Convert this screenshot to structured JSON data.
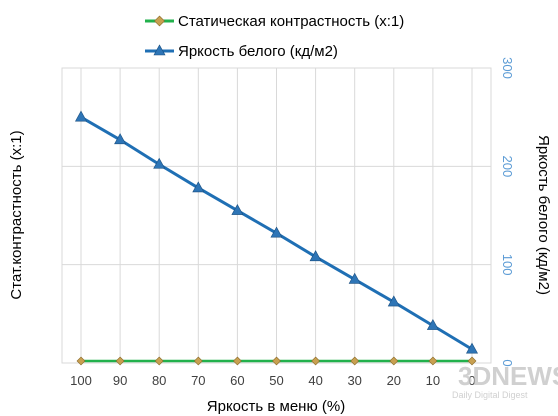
{
  "chart_data": {
    "type": "line",
    "x": [
      100,
      90,
      80,
      70,
      60,
      50,
      40,
      30,
      20,
      10,
      0
    ],
    "xlabel": "Яркость в меню (%)",
    "ylabel_left": "Стат.контрастность  (x:1)",
    "ylabel_right": "Яркость белого (кд/м2)",
    "y_right_ticks": [
      "300",
      "200",
      "100",
      "0"
    ],
    "ylim_right": [
      0,
      300
    ],
    "grid": true,
    "legend_position": "top",
    "series": [
      {
        "name": "Статическая контрастность (x:1)",
        "axis": "left",
        "color": "#22b14c",
        "marker": "diamond",
        "marker_color": "#c8a050",
        "values": [
          0,
          0,
          0,
          0,
          0,
          0,
          0,
          0,
          0,
          0,
          0
        ]
      },
      {
        "name": "Яркость белого (кд/м2)",
        "axis": "right",
        "color": "#1f6fb4",
        "marker": "triangle",
        "marker_color": "#2e75b6",
        "values": [
          250,
          227,
          202,
          178,
          155,
          132,
          108,
          85,
          62,
          38,
          14
        ]
      }
    ]
  },
  "watermark": {
    "logo": "3DNEWS",
    "tagline": "Daily Digital Digest"
  }
}
